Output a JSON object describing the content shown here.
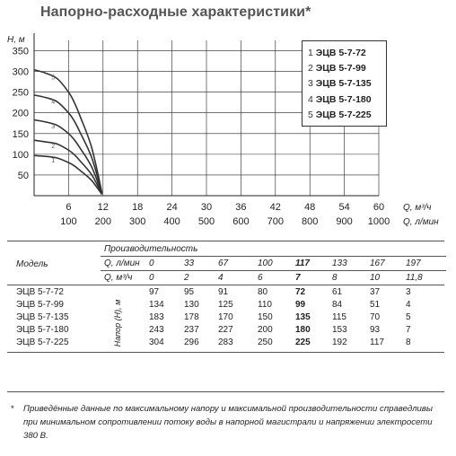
{
  "title": "Напорно-расходные характеристики*",
  "chart_data": {
    "type": "line",
    "ylabel": "H, м",
    "xlabel": "Q, м³/ч",
    "xlabel2": "Q, л/мин",
    "yticks": [
      50,
      100,
      150,
      200,
      250,
      300,
      350
    ],
    "ylim": [
      0,
      375
    ],
    "xticks": [
      6,
      12,
      18,
      24,
      30,
      36,
      42,
      48,
      54,
      60
    ],
    "xticks2": [
      100,
      200,
      300,
      400,
      500,
      600,
      700,
      800,
      900,
      1000
    ],
    "xlim": [
      0,
      60
    ],
    "grid": true,
    "series": [
      {
        "name": "1",
        "x": [
          0,
          2,
          4,
          6,
          7,
          8,
          10,
          11.8
        ],
        "y": [
          97,
          95,
          91,
          80,
          72,
          61,
          37,
          3
        ]
      },
      {
        "name": "2",
        "x": [
          0,
          2,
          4,
          6,
          7,
          8,
          10,
          11.8
        ],
        "y": [
          134,
          130,
          125,
          110,
          99,
          84,
          51,
          4
        ]
      },
      {
        "name": "3",
        "x": [
          0,
          2,
          4,
          6,
          7,
          8,
          10,
          11.8
        ],
        "y": [
          183,
          178,
          170,
          150,
          135,
          115,
          70,
          5
        ]
      },
      {
        "name": "4",
        "x": [
          0,
          2,
          4,
          6,
          7,
          8,
          10,
          11.8
        ],
        "y": [
          243,
          237,
          227,
          200,
          180,
          153,
          93,
          7
        ]
      },
      {
        "name": "5",
        "x": [
          0,
          2,
          4,
          6,
          7,
          8,
          10,
          11.8
        ],
        "y": [
          304,
          296,
          283,
          250,
          225,
          192,
          117,
          8
        ]
      }
    ]
  },
  "legend": [
    {
      "num": "1",
      "name": "ЭЦВ 5-7-72"
    },
    {
      "num": "2",
      "name": "ЭЦВ 5-7-99"
    },
    {
      "num": "3",
      "name": "ЭЦВ 5-7-135"
    },
    {
      "num": "4",
      "name": "ЭЦВ 5-7-180"
    },
    {
      "num": "5",
      "name": "ЭЦВ 5-7-225"
    }
  ],
  "table": {
    "header_productivity": "Производительность",
    "header_model": "Модель",
    "row_lmin_label": "Q, л/мин",
    "row_m3h_label": "Q, м³/ч",
    "lmin": [
      "0",
      "33",
      "67",
      "100",
      "117",
      "133",
      "167",
      "197"
    ],
    "m3h": [
      "0",
      "2",
      "4",
      "6",
      "7",
      "8",
      "10",
      "11,8"
    ],
    "head_label": "Напор (Н), м",
    "rows": [
      {
        "model": "ЭЦВ 5-7-72",
        "values": [
          "97",
          "95",
          "91",
          "80",
          "72",
          "61",
          "37",
          "3"
        ]
      },
      {
        "model": "ЭЦВ 5-7-99",
        "values": [
          "134",
          "130",
          "125",
          "110",
          "99",
          "84",
          "51",
          "4"
        ]
      },
      {
        "model": "ЭЦВ 5-7-135",
        "values": [
          "183",
          "178",
          "170",
          "150",
          "135",
          "115",
          "70",
          "5"
        ]
      },
      {
        "model": "ЭЦВ 5-7-180",
        "values": [
          "243",
          "237",
          "227",
          "200",
          "180",
          "153",
          "93",
          "7"
        ]
      },
      {
        "model": "ЭЦВ 5-7-225",
        "values": [
          "304",
          "296",
          "283",
          "250",
          "225",
          "192",
          "117",
          "8"
        ]
      }
    ],
    "bold_column": 4
  },
  "note": {
    "star": "*",
    "text": "Приведённые данные по максимальному напору и максимальной производительности справедливы при минимальном сопротивлении потоку воды в напорной магистрали и напряжении электросети 380 В."
  }
}
